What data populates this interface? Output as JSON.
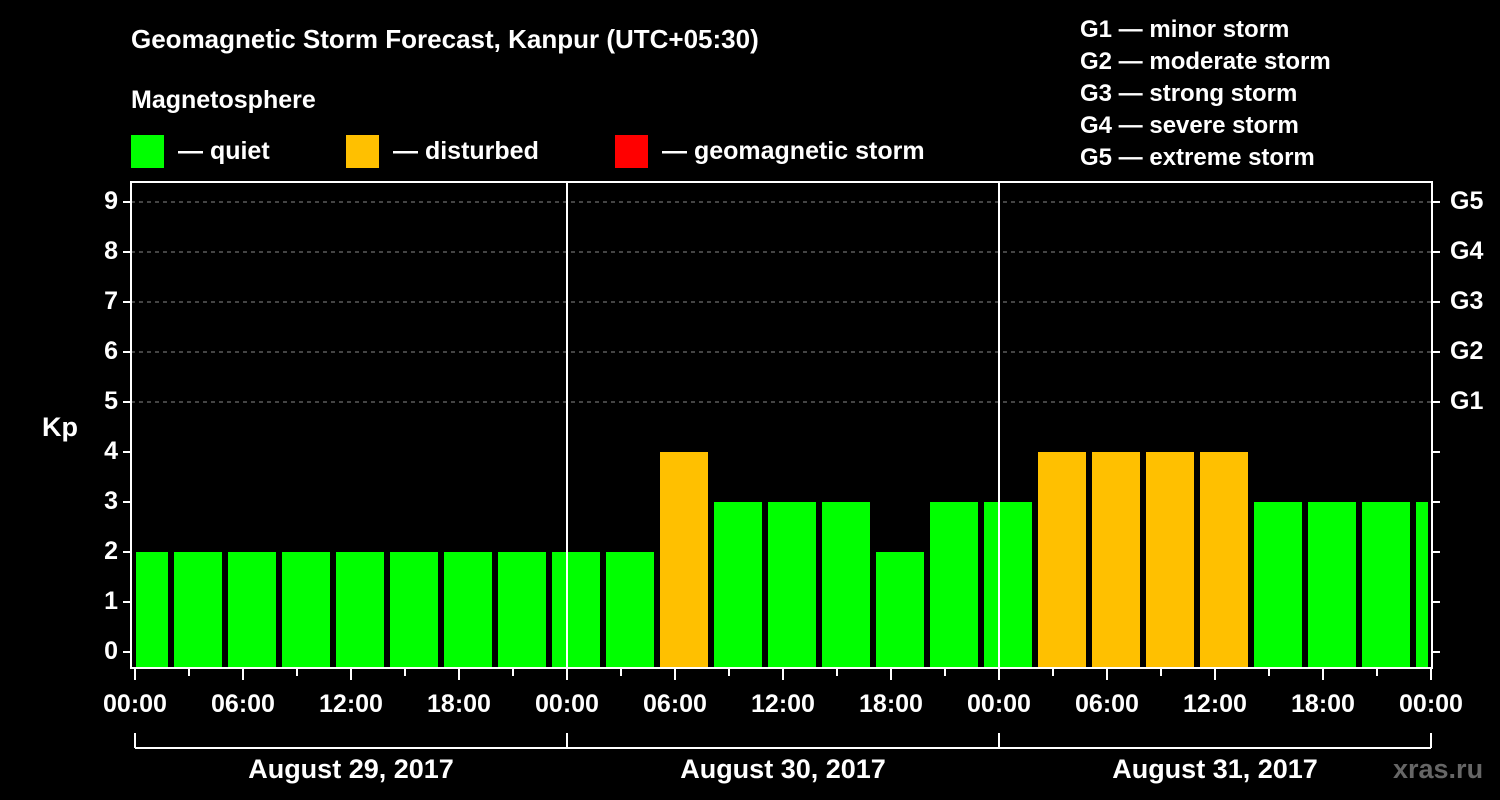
{
  "header": {
    "title": "Geomagnetic Storm Forecast, Kanpur (UTC+05:30)",
    "subtitle": "Magnetosphere",
    "legend": [
      {
        "color": "#00ff00",
        "label": "— quiet"
      },
      {
        "color": "#ffc000",
        "label": "— disturbed"
      },
      {
        "color": "#ff0000",
        "label": "— geomagnetic storm"
      }
    ],
    "g_scale": [
      "G1 — minor storm",
      "G2 — moderate storm",
      "G3 — strong storm",
      "G4 — severe storm",
      "G5 — extreme storm"
    ]
  },
  "axis": {
    "ylabel": "Kp",
    "yticks": [
      "0",
      "1",
      "2",
      "3",
      "4",
      "5",
      "6",
      "7",
      "8",
      "9"
    ],
    "gticks": [
      "G1",
      "G2",
      "G3",
      "G4",
      "G5"
    ],
    "xticks": [
      "00:00",
      "06:00",
      "12:00",
      "18:00",
      "00:00",
      "06:00",
      "12:00",
      "18:00",
      "00:00",
      "06:00",
      "12:00",
      "18:00",
      "00:00"
    ],
    "dates": [
      "August 29, 2017",
      "August 30, 2017",
      "August 31, 2017"
    ]
  },
  "watermark": "xras.ru",
  "colors": {
    "quiet": "#00ff00",
    "disturbed": "#ffc000",
    "storm": "#ff0000",
    "grid": "#888888"
  },
  "chart_data": {
    "type": "bar",
    "title": "Geomagnetic Storm Forecast, Kanpur (UTC+05:30)",
    "xlabel": "",
    "ylabel": "Kp",
    "ylim": [
      0,
      9
    ],
    "grid": "dashed horizontal at Kp 5-9",
    "legend_position": "top",
    "categories": [
      "Aug 29 00:00-02:00",
      "Aug 29 02:00",
      "Aug 29 05:00",
      "Aug 29 08:00",
      "Aug 29 11:00",
      "Aug 29 14:00",
      "Aug 29 17:00",
      "Aug 29 20:00",
      "Aug 29 23:00",
      "Aug 30 02:00",
      "Aug 30 05:00",
      "Aug 30 08:00",
      "Aug 30 11:00",
      "Aug 30 14:00",
      "Aug 30 17:00",
      "Aug 30 20:00",
      "Aug 30 23:00",
      "Aug 31 02:00",
      "Aug 31 05:00",
      "Aug 31 08:00",
      "Aug 31 11:00",
      "Aug 31 14:00",
      "Aug 31 17:00",
      "Aug 31 20:00",
      "Aug 31 23:00-24:00"
    ],
    "values": [
      2,
      2,
      2,
      2,
      2,
      2,
      2,
      2,
      2,
      2,
      4,
      3,
      3,
      3,
      2,
      3,
      3,
      4,
      4,
      4,
      4,
      3,
      3,
      3,
      3
    ],
    "status": [
      "quiet",
      "quiet",
      "quiet",
      "quiet",
      "quiet",
      "quiet",
      "quiet",
      "quiet",
      "quiet",
      "quiet",
      "disturbed",
      "quiet",
      "quiet",
      "quiet",
      "quiet",
      "quiet",
      "quiet",
      "disturbed",
      "disturbed",
      "disturbed",
      "disturbed",
      "quiet",
      "quiet",
      "quiet",
      "quiet"
    ],
    "right_axis": {
      "G1": 5,
      "G2": 6,
      "G3": 7,
      "G4": 8,
      "G5": 9
    }
  }
}
